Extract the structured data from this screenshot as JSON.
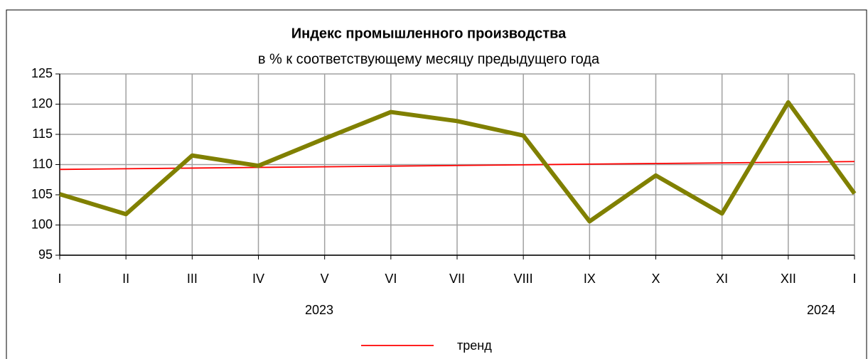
{
  "chart_data": {
    "type": "line",
    "title": "Индекс промышленного производства",
    "subtitle": "в % к соответствующему месяцу предыдущего года",
    "categories": [
      "I",
      "II",
      "III",
      "IV",
      "V",
      "VI",
      "VII",
      "VIII",
      "IX",
      "X",
      "XI",
      "XII",
      "I"
    ],
    "year_labels": [
      "2023",
      "2024"
    ],
    "series": [
      {
        "color": "#808000",
        "values": [
          105.1,
          101.8,
          111.5,
          109.8,
          114.3,
          118.7,
          117.2,
          114.8,
          100.6,
          108.2,
          101.9,
          120.3,
          105.2
        ]
      },
      {
        "name": "тренд",
        "color": "#ff0000",
        "values": [
          109.2,
          109.31,
          109.42,
          109.53,
          109.63,
          109.74,
          109.85,
          109.96,
          110.07,
          110.18,
          110.28,
          110.39,
          110.5
        ]
      }
    ],
    "ylim": [
      95,
      125
    ],
    "yticks": [
      95,
      100,
      105,
      110,
      115,
      120,
      125
    ],
    "grid": true
  }
}
